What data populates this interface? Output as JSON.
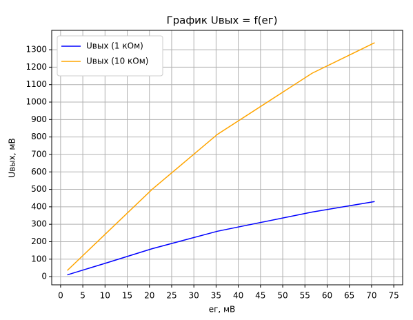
{
  "chart_data": {
    "type": "line",
    "title": "График Uвых = f(eг)",
    "x_label": "eг, мВ",
    "y_label": "Uвых, мВ",
    "series": [
      {
        "name": "Uвых (1 кОм)",
        "color": "#0000ff",
        "x": [
          1.5,
          10.5,
          20.6,
          35.3,
          56.6,
          70.7
        ],
        "values": [
          10,
          80,
          160,
          260,
          370,
          430
        ]
      },
      {
        "name": "Uвых (10 кОм)",
        "color": "#ffa500",
        "x": [
          1.5,
          20.6,
          35.3,
          56.6,
          70.7
        ],
        "values": [
          35,
          500,
          815,
          1165,
          1340
        ]
      }
    ],
    "xlim": [
      -2,
      77
    ],
    "xticks": [
      0,
      5,
      10,
      15,
      20,
      25,
      30,
      35,
      40,
      45,
      50,
      55,
      60,
      65,
      70,
      75
    ],
    "ylim": [
      -47,
      1411
    ],
    "yticks": [
      0,
      100,
      200,
      300,
      400,
      500,
      600,
      700,
      800,
      900,
      1000,
      1100,
      1200,
      1300
    ],
    "grid": true,
    "legend": "upper-left"
  }
}
